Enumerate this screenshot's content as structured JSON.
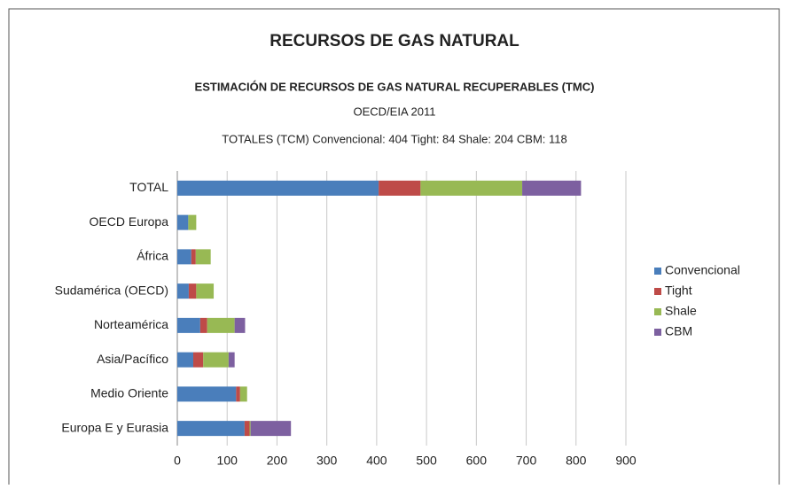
{
  "chart_data": {
    "type": "stacked_barh",
    "title": "RECURSOS DE GAS NATURAL",
    "subtitle": "ESTIMACIÓN DE RECURSOS DE GAS NATURAL RECUPERABLES (TMC)",
    "source": "OECD/EIA 2011",
    "annotation": "TOTALES (TCM) Convencional: 404 Tight: 84 Shale: 204 CBM: 118",
    "categories": [
      "TOTAL",
      "OECD Europa",
      "África",
      "Sudamérica (OECD)",
      "Norteamérica",
      "Asia/Pacífico",
      "Medio Oriente",
      "Europa E y Eurasia"
    ],
    "series": [
      {
        "name": "Convencional",
        "color": "#4a7ebb",
        "values": [
          404,
          22,
          28,
          23,
          46,
          32,
          118,
          135
        ]
      },
      {
        "name": "Tight",
        "color": "#be4b48",
        "values": [
          84,
          0,
          9,
          15,
          14,
          20,
          8,
          10
        ]
      },
      {
        "name": "Shale",
        "color": "#98b954",
        "values": [
          204,
          16,
          30,
          35,
          55,
          51,
          14,
          2
        ]
      },
      {
        "name": "CBM",
        "color": "#7d60a0",
        "values": [
          118,
          0,
          0,
          0,
          21,
          12,
          0,
          81
        ]
      }
    ],
    "xlim": [
      0,
      900
    ],
    "xticks": [
      0,
      100,
      200,
      300,
      400,
      500,
      600,
      700,
      800,
      900
    ],
    "grid": true,
    "legend": "right"
  }
}
